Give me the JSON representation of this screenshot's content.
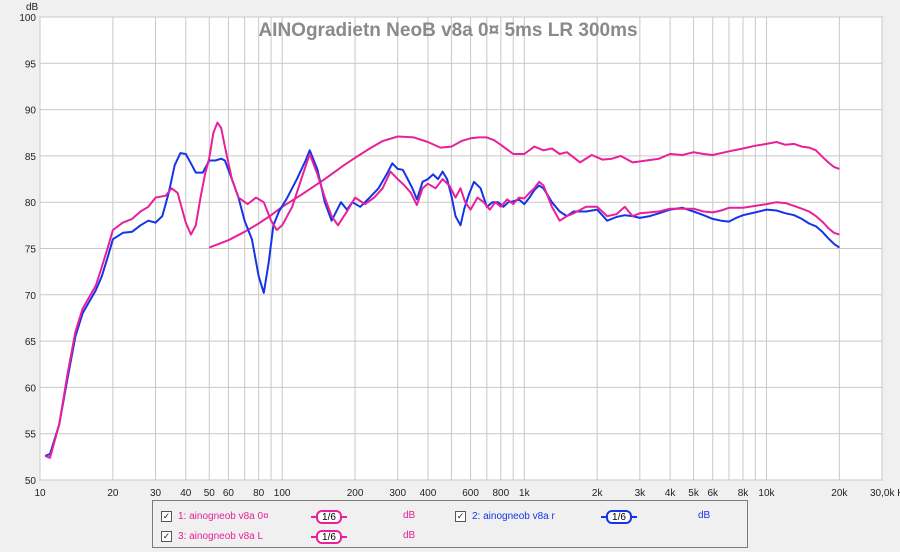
{
  "chart_data": {
    "type": "line",
    "title": "AINOgradietn NeoB v8a 0¤ 5ms LR 300ms",
    "ylabel": "dB",
    "xlabel": "Hz",
    "x_scale": "log",
    "xlim": [
      10,
      30000
    ],
    "ylim": [
      50,
      100
    ],
    "grid": true,
    "legend_position": "bottom",
    "x_tick_labels": [
      {
        "v": 10,
        "t": "10"
      },
      {
        "v": 20,
        "t": "20"
      },
      {
        "v": 30,
        "t": "30"
      },
      {
        "v": 40,
        "t": "40"
      },
      {
        "v": 50,
        "t": "50"
      },
      {
        "v": 60,
        "t": "60"
      },
      {
        "v": 80,
        "t": "80"
      },
      {
        "v": 100,
        "t": "100"
      },
      {
        "v": 200,
        "t": "200"
      },
      {
        "v": 300,
        "t": "300"
      },
      {
        "v": 400,
        "t": "400"
      },
      {
        "v": 600,
        "t": "600"
      },
      {
        "v": 800,
        "t": "800"
      },
      {
        "v": 1000,
        "t": "1k"
      },
      {
        "v": 2000,
        "t": "2k"
      },
      {
        "v": 3000,
        "t": "3k"
      },
      {
        "v": 4000,
        "t": "4k"
      },
      {
        "v": 5000,
        "t": "5k"
      },
      {
        "v": 6000,
        "t": "6k"
      },
      {
        "v": 8000,
        "t": "8k"
      },
      {
        "v": 10000,
        "t": "10k"
      },
      {
        "v": 20000,
        "t": "20k"
      },
      {
        "v": 30000,
        "t": "30,0k Hz"
      }
    ],
    "y_tick_labels": [
      "50",
      "55",
      "60",
      "65",
      "70",
      "75",
      "80",
      "85",
      "90",
      "95",
      "100"
    ],
    "series": [
      {
        "name": "1: ainogneob v8a 0¤",
        "color": "#e8209a",
        "smoothing": "1/6",
        "unit": "dB",
        "points": [
          [
            50,
            75.1
          ],
          [
            60,
            75.9
          ],
          [
            70,
            76.8
          ],
          [
            80,
            77.7
          ],
          [
            90,
            78.6
          ],
          [
            100,
            79.5
          ],
          [
            120,
            80.8
          ],
          [
            150,
            82.5
          ],
          [
            180,
            84.0
          ],
          [
            200,
            84.8
          ],
          [
            230,
            85.8
          ],
          [
            260,
            86.6
          ],
          [
            300,
            87.1
          ],
          [
            350,
            87.0
          ],
          [
            400,
            86.5
          ],
          [
            450,
            85.9
          ],
          [
            500,
            86.0
          ],
          [
            550,
            86.6
          ],
          [
            600,
            86.9
          ],
          [
            650,
            87.0
          ],
          [
            700,
            87.0
          ],
          [
            750,
            86.7
          ],
          [
            800,
            86.2
          ],
          [
            900,
            85.2
          ],
          [
            1000,
            85.2
          ],
          [
            1100,
            86.0
          ],
          [
            1200,
            85.6
          ],
          [
            1300,
            85.8
          ],
          [
            1400,
            85.2
          ],
          [
            1500,
            85.4
          ],
          [
            1700,
            84.3
          ],
          [
            1900,
            85.1
          ],
          [
            2100,
            84.6
          ],
          [
            2300,
            84.7
          ],
          [
            2500,
            85.0
          ],
          [
            2800,
            84.3
          ],
          [
            3200,
            84.5
          ],
          [
            3600,
            84.7
          ],
          [
            4000,
            85.2
          ],
          [
            4500,
            85.1
          ],
          [
            5000,
            85.4
          ],
          [
            5500,
            85.2
          ],
          [
            6000,
            85.1
          ],
          [
            7000,
            85.5
          ],
          [
            8000,
            85.8
          ],
          [
            9000,
            86.1
          ],
          [
            10000,
            86.3
          ],
          [
            11000,
            86.5
          ],
          [
            12000,
            86.2
          ],
          [
            13000,
            86.3
          ],
          [
            14000,
            86.0
          ],
          [
            15000,
            85.9
          ],
          [
            16000,
            85.6
          ],
          [
            17000,
            84.9
          ],
          [
            18000,
            84.3
          ],
          [
            19000,
            83.8
          ],
          [
            20000,
            83.6
          ]
        ]
      },
      {
        "name": "2: ainogneob v8a r",
        "color": "#1434e8",
        "smoothing": "1/6",
        "unit": "dB",
        "points": [
          [
            10.5,
            52.6
          ],
          [
            11,
            52.8
          ],
          [
            12,
            56
          ],
          [
            13,
            61
          ],
          [
            14,
            65.5
          ],
          [
            15,
            68
          ],
          [
            17,
            70.5
          ],
          [
            18,
            72
          ],
          [
            19,
            74
          ],
          [
            20,
            76
          ],
          [
            22,
            76.7
          ],
          [
            24,
            76.8
          ],
          [
            26,
            77.5
          ],
          [
            28,
            78
          ],
          [
            30,
            77.8
          ],
          [
            32,
            78.5
          ],
          [
            34,
            81
          ],
          [
            36,
            84
          ],
          [
            38,
            85.3
          ],
          [
            40,
            85.2
          ],
          [
            42,
            84.2
          ],
          [
            44,
            83.2
          ],
          [
            47,
            83.2
          ],
          [
            50,
            84.5
          ],
          [
            53,
            84.5
          ],
          [
            56,
            84.7
          ],
          [
            58,
            84.5
          ],
          [
            62,
            82.5
          ],
          [
            66,
            80.5
          ],
          [
            70,
            78
          ],
          [
            75,
            76
          ],
          [
            80,
            72
          ],
          [
            84,
            70.2
          ],
          [
            88,
            73.5
          ],
          [
            92,
            77.5
          ],
          [
            97,
            79
          ],
          [
            105,
            80.5
          ],
          [
            115,
            82.5
          ],
          [
            125,
            84.5
          ],
          [
            130,
            85.6
          ],
          [
            140,
            83.5
          ],
          [
            150,
            80
          ],
          [
            160,
            78
          ],
          [
            175,
            80
          ],
          [
            185,
            79.2
          ],
          [
            195,
            80
          ],
          [
            210,
            79.5
          ],
          [
            230,
            80.5
          ],
          [
            250,
            81.5
          ],
          [
            270,
            83
          ],
          [
            285,
            84.2
          ],
          [
            300,
            83.6
          ],
          [
            315,
            83.5
          ],
          [
            330,
            82.5
          ],
          [
            345,
            81.5
          ],
          [
            360,
            80.3
          ],
          [
            380,
            82.2
          ],
          [
            400,
            82.5
          ],
          [
            420,
            83
          ],
          [
            440,
            82.5
          ],
          [
            460,
            83.3
          ],
          [
            480,
            82.5
          ],
          [
            500,
            80.7
          ],
          [
            520,
            78.5
          ],
          [
            545,
            77.5
          ],
          [
            565,
            79.3
          ],
          [
            590,
            80.8
          ],
          [
            620,
            82.2
          ],
          [
            660,
            81.5
          ],
          [
            700,
            79.5
          ],
          [
            740,
            80
          ],
          [
            780,
            80
          ],
          [
            820,
            79.5
          ],
          [
            860,
            80
          ],
          [
            900,
            80.1
          ],
          [
            950,
            80.3
          ],
          [
            1000,
            79.8
          ],
          [
            1050,
            80.5
          ],
          [
            1100,
            81.3
          ],
          [
            1150,
            81.8
          ],
          [
            1200,
            81.5
          ],
          [
            1300,
            80
          ],
          [
            1400,
            79
          ],
          [
            1500,
            78.5
          ],
          [
            1600,
            79
          ],
          [
            1800,
            79
          ],
          [
            2000,
            79.2
          ],
          [
            2200,
            78
          ],
          [
            2400,
            78.4
          ],
          [
            2600,
            78.6
          ],
          [
            2800,
            78.5
          ],
          [
            3000,
            78.3
          ],
          [
            3300,
            78.5
          ],
          [
            3600,
            78.8
          ],
          [
            4000,
            79.2
          ],
          [
            4500,
            79.4
          ],
          [
            5000,
            79
          ],
          [
            5500,
            78.6
          ],
          [
            6000,
            78.2
          ],
          [
            6500,
            78
          ],
          [
            7000,
            77.9
          ],
          [
            7500,
            78.3
          ],
          [
            8000,
            78.6
          ],
          [
            9000,
            78.9
          ],
          [
            10000,
            79.2
          ],
          [
            11000,
            79.1
          ],
          [
            12000,
            78.8
          ],
          [
            13000,
            78.6
          ],
          [
            14000,
            78.2
          ],
          [
            15000,
            77.7
          ],
          [
            16000,
            77.4
          ],
          [
            17000,
            76.8
          ],
          [
            18000,
            76.1
          ],
          [
            19000,
            75.5
          ],
          [
            20000,
            75.1
          ]
        ]
      },
      {
        "name": "3: ainogneob v8a L",
        "color": "#e8209a",
        "smoothing": "1/6",
        "unit": "dB",
        "points": [
          [
            10.5,
            52.6
          ],
          [
            11,
            52.4
          ],
          [
            12,
            56
          ],
          [
            13,
            61.5
          ],
          [
            14,
            66
          ],
          [
            15,
            68.5
          ],
          [
            17,
            71
          ],
          [
            18,
            73
          ],
          [
            19,
            75
          ],
          [
            20,
            77
          ],
          [
            22,
            77.8
          ],
          [
            24,
            78.2
          ],
          [
            26,
            79
          ],
          [
            28,
            79.5
          ],
          [
            30,
            80.5
          ],
          [
            33,
            80.7
          ],
          [
            35,
            81.5
          ],
          [
            37,
            81
          ],
          [
            40,
            77.8
          ],
          [
            42,
            76.5
          ],
          [
            44,
            77.5
          ],
          [
            46,
            80.5
          ],
          [
            48,
            83
          ],
          [
            50,
            84.8
          ],
          [
            52,
            87.5
          ],
          [
            54,
            88.6
          ],
          [
            56,
            88
          ],
          [
            58,
            86
          ],
          [
            62,
            82.5
          ],
          [
            66,
            80.5
          ],
          [
            72,
            79.8
          ],
          [
            78,
            80.5
          ],
          [
            84,
            80
          ],
          [
            90,
            78
          ],
          [
            95,
            77
          ],
          [
            100,
            77.5
          ],
          [
            110,
            79.5
          ],
          [
            120,
            82.5
          ],
          [
            130,
            85.2
          ],
          [
            140,
            83
          ],
          [
            150,
            80.5
          ],
          [
            160,
            78.5
          ],
          [
            170,
            77.5
          ],
          [
            185,
            79
          ],
          [
            200,
            80.5
          ],
          [
            220,
            79.8
          ],
          [
            240,
            80.5
          ],
          [
            260,
            81.5
          ],
          [
            280,
            83.3
          ],
          [
            300,
            82.5
          ],
          [
            320,
            81.8
          ],
          [
            340,
            81
          ],
          [
            360,
            79.7
          ],
          [
            380,
            81.5
          ],
          [
            400,
            82
          ],
          [
            430,
            81.5
          ],
          [
            460,
            82.5
          ],
          [
            490,
            81.8
          ],
          [
            520,
            80.5
          ],
          [
            545,
            81.5
          ],
          [
            570,
            80
          ],
          [
            600,
            79.2
          ],
          [
            640,
            80.5
          ],
          [
            680,
            80
          ],
          [
            720,
            79.2
          ],
          [
            760,
            80
          ],
          [
            800,
            79.5
          ],
          [
            850,
            80.3
          ],
          [
            900,
            79.8
          ],
          [
            950,
            80.5
          ],
          [
            1000,
            80.4
          ],
          [
            1050,
            81
          ],
          [
            1100,
            81.5
          ],
          [
            1150,
            82.2
          ],
          [
            1200,
            81.8
          ],
          [
            1300,
            79.5
          ],
          [
            1400,
            78
          ],
          [
            1500,
            78.5
          ],
          [
            1600,
            78.8
          ],
          [
            1800,
            79.5
          ],
          [
            2000,
            79.5
          ],
          [
            2200,
            78.5
          ],
          [
            2400,
            78.7
          ],
          [
            2600,
            79.5
          ],
          [
            2800,
            78.5
          ],
          [
            3000,
            78.8
          ],
          [
            3300,
            78.9
          ],
          [
            3600,
            79
          ],
          [
            4000,
            79.3
          ],
          [
            4500,
            79.3
          ],
          [
            5000,
            79.3
          ],
          [
            5500,
            79
          ],
          [
            6000,
            78.9
          ],
          [
            6500,
            79.1
          ],
          [
            7000,
            79.4
          ],
          [
            8000,
            79.4
          ],
          [
            9000,
            79.6
          ],
          [
            10000,
            79.8
          ],
          [
            11000,
            80
          ],
          [
            12000,
            79.9
          ],
          [
            13000,
            79.6
          ],
          [
            14000,
            79.3
          ],
          [
            15000,
            79
          ],
          [
            16000,
            78.5
          ],
          [
            17000,
            77.9
          ],
          [
            18000,
            77.2
          ],
          [
            19000,
            76.7
          ],
          [
            20000,
            76.5
          ]
        ]
      }
    ]
  }
}
